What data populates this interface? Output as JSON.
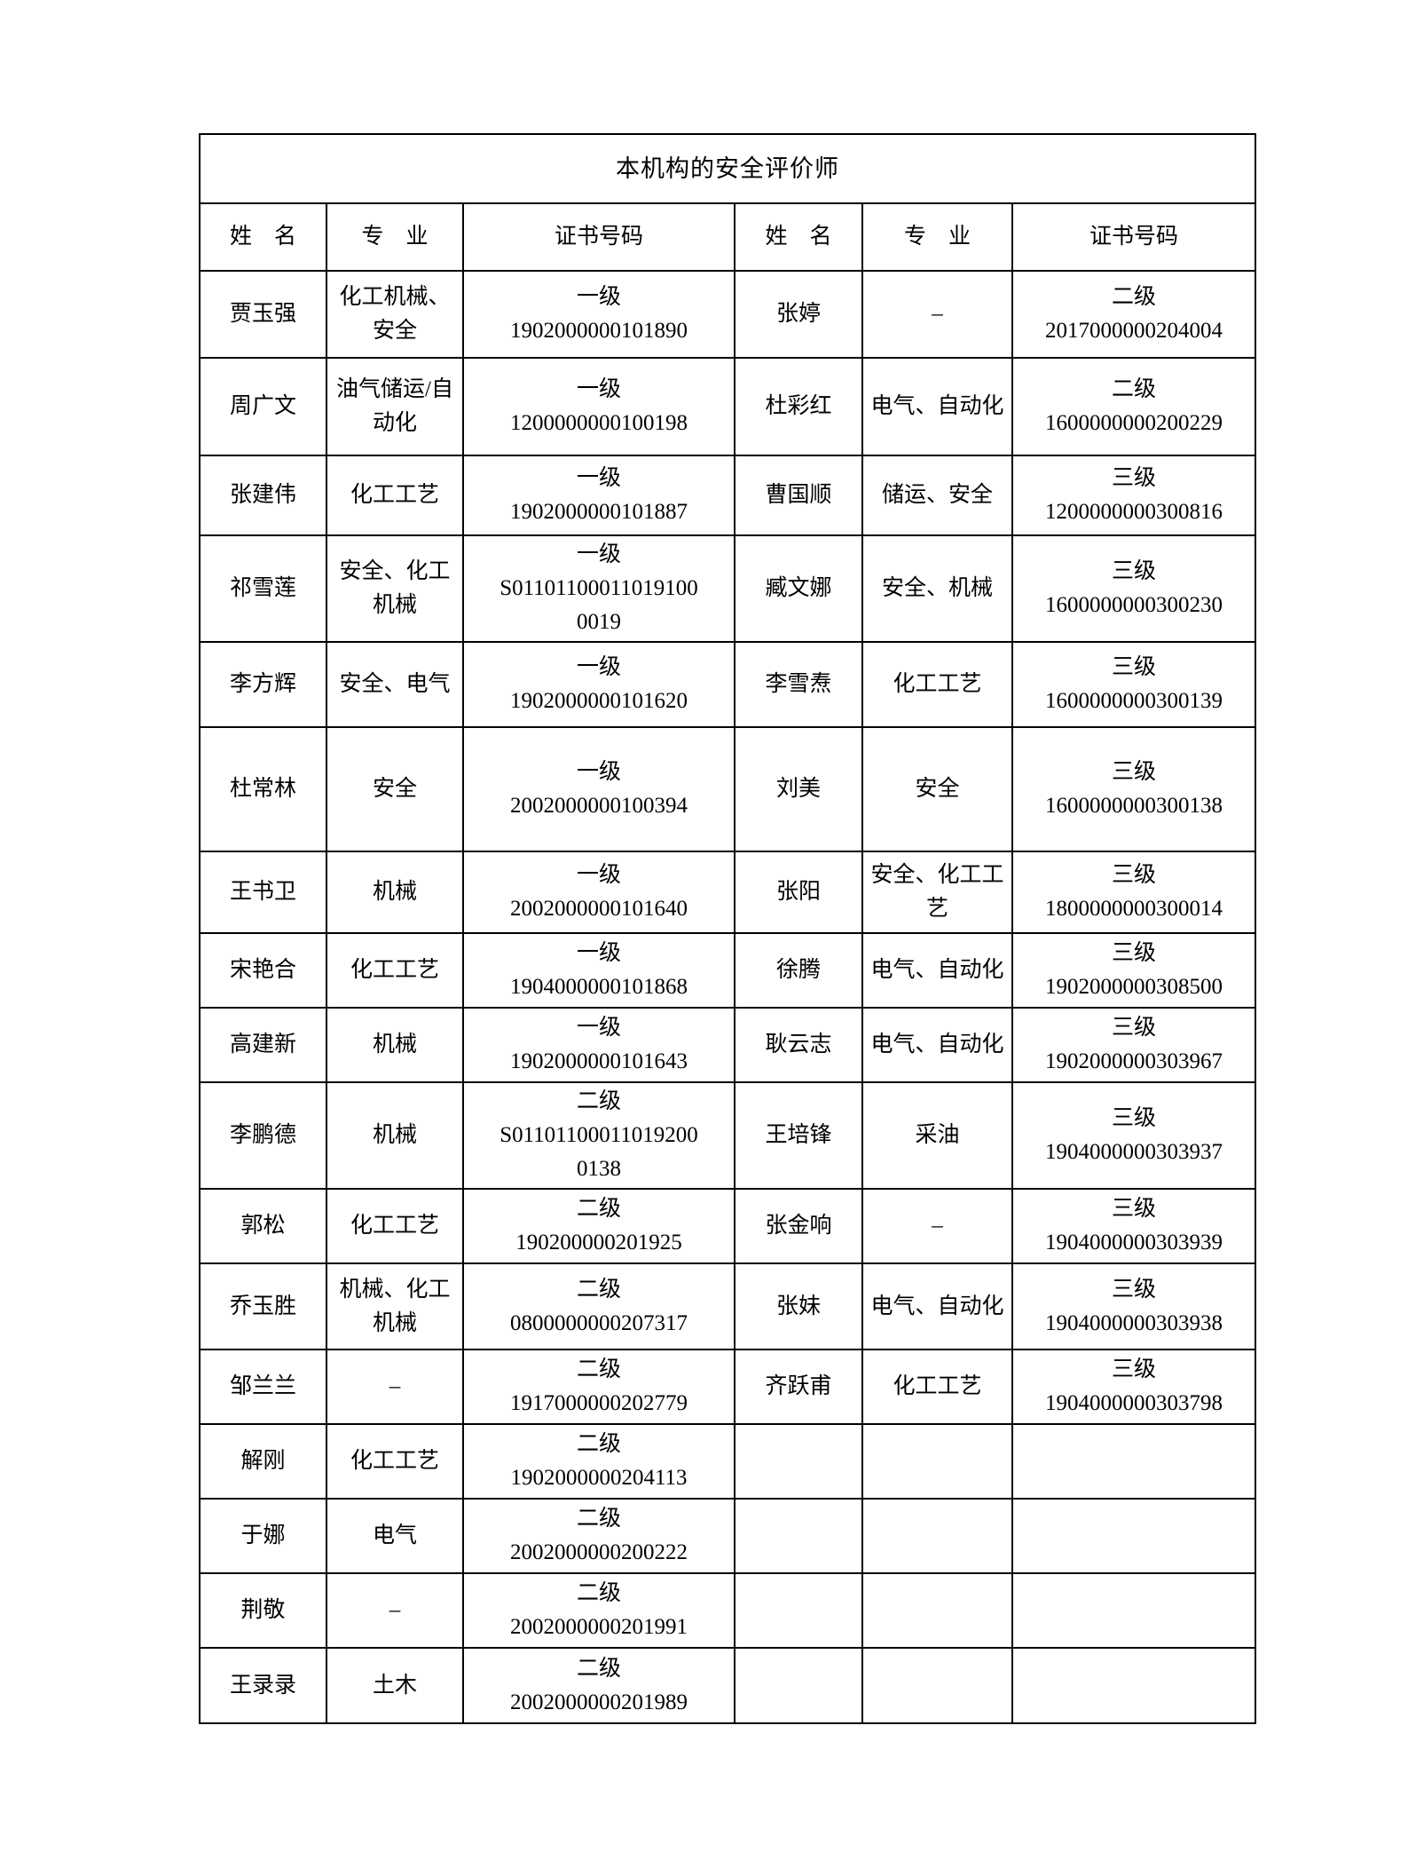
{
  "table": {
    "title": "本机构的安全评价师",
    "headers": [
      "姓　名",
      "专　业",
      "证书号码",
      "姓　名",
      "专　业",
      "证书号码"
    ],
    "empty_placeholder": "",
    "rows": [
      {
        "left": {
          "name": "贾玉强",
          "major": "化工机械、安全",
          "level": "一级",
          "number": [
            "1902000000101890"
          ]
        },
        "right": {
          "name": "张婷",
          "major": "–",
          "level": "二级",
          "number": [
            "2017000000204004"
          ]
        }
      },
      {
        "left": {
          "name": "周广文",
          "major": "油气储运/自动化",
          "level": "一级",
          "number": [
            "1200000000100198"
          ]
        },
        "right": {
          "name": "杜彩红",
          "major": "电气、自动化",
          "level": "二级",
          "number": [
            "1600000000200229"
          ]
        }
      },
      {
        "left": {
          "name": "张建伟",
          "major": "化工工艺",
          "level": "一级",
          "number": [
            "1902000000101887"
          ]
        },
        "right": {
          "name": "曹国顺",
          "major": "储运、安全",
          "level": "三级",
          "number": [
            "1200000000300816"
          ]
        }
      },
      {
        "left": {
          "name": "祁雪莲",
          "major": "安全、化工机械",
          "level": "一级",
          "number": [
            "S01101100011019100",
            "0019"
          ]
        },
        "right": {
          "name": "臧文娜",
          "major": "安全、机械",
          "level": "三级",
          "number": [
            "1600000000300230"
          ]
        }
      },
      {
        "left": {
          "name": "李方辉",
          "major": "安全、电气",
          "level": "一级",
          "number": [
            "1902000000101620"
          ]
        },
        "right": {
          "name": "李雪焘",
          "major": "化工工艺",
          "level": "三级",
          "number": [
            "1600000000300139"
          ]
        }
      },
      {
        "left": {
          "name": "杜常林",
          "major": "安全",
          "level": "一级",
          "number": [
            "2002000000100394"
          ]
        },
        "right": {
          "name": "刘美",
          "major": "安全",
          "level": "三级",
          "number": [
            "1600000000300138"
          ]
        }
      },
      {
        "left": {
          "name": "王书卫",
          "major": "机械",
          "level": "一级",
          "number": [
            "2002000000101640"
          ]
        },
        "right": {
          "name": "张阳",
          "major": "安全、化工工艺",
          "level": "三级",
          "number": [
            "1800000000300014"
          ]
        }
      },
      {
        "left": {
          "name": "宋艳合",
          "major": "化工工艺",
          "level": "一级",
          "number": [
            "1904000000101868"
          ]
        },
        "right": {
          "name": "徐腾",
          "major": "电气、自动化",
          "level": "三级",
          "number": [
            "1902000000308500"
          ]
        }
      },
      {
        "left": {
          "name": "高建新",
          "major": "机械",
          "level": "一级",
          "number": [
            "1902000000101643"
          ]
        },
        "right": {
          "name": "耿云志",
          "major": "电气、自动化",
          "level": "三级",
          "number": [
            "1902000000303967"
          ]
        }
      },
      {
        "left": {
          "name": "李鹏德",
          "major": "机械",
          "level": "二级",
          "number": [
            "S01101100011019200",
            "0138"
          ]
        },
        "right": {
          "name": "王培锋",
          "major": "采油",
          "level": "三级",
          "number": [
            "1904000000303937"
          ]
        }
      },
      {
        "left": {
          "name": "郭松",
          "major": "化工工艺",
          "level": "二级",
          "number": [
            "190200000201925"
          ]
        },
        "right": {
          "name": "张金响",
          "major": "–",
          "level": "三级",
          "number": [
            "1904000000303939"
          ]
        }
      },
      {
        "left": {
          "name": "乔玉胜",
          "major": "机械、化工机械",
          "level": "二级",
          "number": [
            "0800000000207317"
          ]
        },
        "right": {
          "name": "张妹",
          "major": "电气、自动化",
          "level": "三级",
          "number": [
            "1904000000303938"
          ]
        }
      },
      {
        "left": {
          "name": "邹兰兰",
          "major": "–",
          "level": "二级",
          "number": [
            "1917000000202779"
          ]
        },
        "right": {
          "name": "齐跃甫",
          "major": "化工工艺",
          "level": "三级",
          "number": [
            "1904000000303798"
          ]
        }
      },
      {
        "left": {
          "name": "解刚",
          "major": "化工工艺",
          "level": "二级",
          "number": [
            "1902000000204113"
          ]
        },
        "right": null
      },
      {
        "left": {
          "name": "于娜",
          "major": "电气",
          "level": "二级",
          "number": [
            "2002000000200222"
          ]
        },
        "right": null
      },
      {
        "left": {
          "name": "荆敬",
          "major": "–",
          "level": "二级",
          "number": [
            "2002000000201991"
          ]
        },
        "right": null
      },
      {
        "left": {
          "name": "王录录",
          "major": "土木",
          "level": "二级",
          "number": [
            "2002000000201989"
          ]
        },
        "right": null
      }
    ]
  }
}
